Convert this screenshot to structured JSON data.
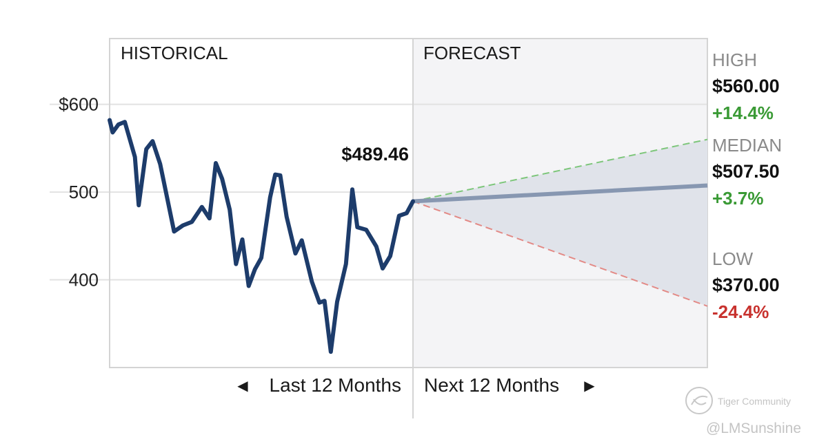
{
  "chart_data": {
    "type": "line",
    "sections": {
      "historical": "HISTORICAL",
      "forecast": "FORECAST"
    },
    "ylim": [
      300,
      675
    ],
    "yticks": [
      {
        "value": 600,
        "label": "$600"
      },
      {
        "value": 500,
        "label": "500"
      },
      {
        "value": 400,
        "label": "400"
      }
    ],
    "grid": true,
    "series": [
      {
        "values": [
          [
            0,
            582
          ],
          [
            0.12,
            568
          ],
          [
            0.35,
            577
          ],
          [
            0.6,
            580
          ],
          [
            1.0,
            540
          ],
          [
            1.15,
            485
          ],
          [
            1.45,
            549
          ],
          [
            1.7,
            558
          ],
          [
            2.0,
            532
          ],
          [
            2.55,
            455
          ],
          [
            2.9,
            462
          ],
          [
            3.25,
            466
          ],
          [
            3.65,
            483
          ],
          [
            3.95,
            470
          ],
          [
            4.2,
            533
          ],
          [
            4.45,
            515
          ],
          [
            4.75,
            480
          ],
          [
            5.0,
            418
          ],
          [
            5.25,
            446
          ],
          [
            5.5,
            393
          ],
          [
            5.75,
            412
          ],
          [
            6.0,
            425
          ],
          [
            6.35,
            494
          ],
          [
            6.55,
            520
          ],
          [
            6.75,
            519
          ],
          [
            7.0,
            472
          ],
          [
            7.35,
            430
          ],
          [
            7.6,
            445
          ],
          [
            8.0,
            398
          ],
          [
            8.3,
            374
          ],
          [
            8.5,
            376
          ],
          [
            8.75,
            318
          ],
          [
            9.0,
            375
          ],
          [
            9.35,
            418
          ],
          [
            9.6,
            503
          ],
          [
            9.8,
            460
          ],
          [
            10.15,
            457
          ],
          [
            10.55,
            438
          ],
          [
            10.8,
            413
          ],
          [
            11.1,
            427
          ],
          [
            11.45,
            473
          ],
          [
            11.75,
            476
          ],
          [
            12.0,
            489.46
          ]
        ]
      }
    ],
    "last_price": 489.46,
    "last_price_label": "$489.46",
    "forecast": {
      "start": 489.46,
      "high": 560.0,
      "median": 507.5,
      "low": 370.0
    },
    "stats": [
      {
        "label": "HIGH",
        "price": "$560.00",
        "change": "+14.4%",
        "direction": "up"
      },
      {
        "label": "MEDIAN",
        "price": "$507.50",
        "change": "+3.7%",
        "direction": "up"
      },
      {
        "label": "LOW",
        "price": "$370.00",
        "change": "-24.4%",
        "direction": "down"
      }
    ],
    "bottom_labels": {
      "left": "Last 12 Months",
      "right": "Next 12 Months"
    }
  },
  "colors": {
    "history_line": "#1d3c6b",
    "median_line": "#8797b1",
    "high_line": "#7dc67a",
    "low_line": "#e38a86",
    "cone_fill": "#e0e3ea",
    "forecast_bg": "#f4f4f6",
    "grid": "#e2e2e2",
    "frame": "#d4d4d4"
  },
  "icons": {
    "left_arrow": "◀",
    "right_arrow": "▶",
    "watermark": "tiger-logo-icon"
  },
  "watermark": {
    "brand": "Tiger Community",
    "handle": "@LMSunshine"
  }
}
